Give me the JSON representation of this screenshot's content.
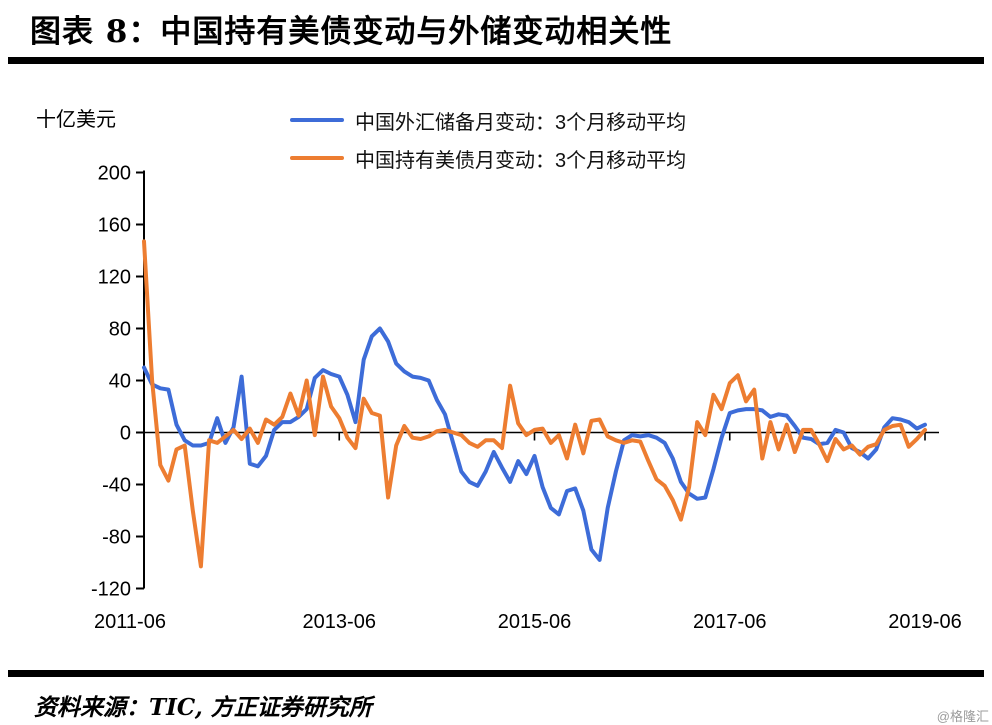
{
  "header": {
    "title": "图表 8：中国持有美债变动与外储变动相关性"
  },
  "footer": {
    "source": "资料来源：TIC, 方正证券研究所",
    "watermark": "@格隆汇"
  },
  "chart_data": {
    "type": "line",
    "title": "图表 8：中国持有美债变动与外储变动相关性",
    "ylabel": "十亿美元",
    "ylim": [
      -120,
      200
    ],
    "y_ticks": [
      200,
      160,
      120,
      80,
      40,
      0,
      -40,
      -80,
      -120
    ],
    "x_tick_labels": [
      "2011-06",
      "2013-06",
      "2015-06",
      "2017-06",
      "2019-06"
    ],
    "x_tick_months": [
      0,
      24,
      48,
      72,
      96
    ],
    "x_start": "2011-06",
    "x_end": "2019-06",
    "x_freq": "monthly",
    "grid": false,
    "legend_position": "top",
    "series": [
      {
        "name": "中国外汇储备月变动：3个月移动平均",
        "color": "#3d6cd8",
        "values": [
          50,
          37,
          34,
          33,
          6,
          -6,
          -10,
          -10,
          -8,
          11,
          -8,
          4,
          43,
          -24,
          -26,
          -18,
          2,
          8,
          8,
          12,
          18,
          42,
          48,
          45,
          43,
          29,
          8,
          56,
          74,
          80,
          70,
          53,
          47,
          43,
          42,
          40,
          25,
          14,
          -8,
          -30,
          -38,
          -41,
          -30,
          -15,
          -27,
          -38,
          -22,
          -32,
          -18,
          -42,
          -58,
          -63,
          -45,
          -43,
          -60,
          -90,
          -98,
          -58,
          -30,
          -6,
          -2,
          -3,
          -2,
          -4,
          -8,
          -20,
          -38,
          -47,
          -51,
          -50,
          -28,
          -4,
          15,
          17,
          18,
          18,
          17,
          12,
          14,
          13,
          5,
          -4,
          -5,
          -9,
          -8,
          2,
          0,
          -12,
          -15,
          -20,
          -13,
          4,
          11,
          10,
          8,
          3,
          6
        ]
      },
      {
        "name": "中国持有美债月变动：3个月移动平均",
        "color": "#ed7d31",
        "values": [
          147,
          40,
          -25,
          -37,
          -13,
          -10,
          -60,
          -103,
          -6,
          -8,
          -3,
          2,
          -5,
          3,
          -8,
          10,
          6,
          12,
          30,
          13,
          40,
          -2,
          43,
          20,
          11,
          -4,
          -12,
          26,
          15,
          13,
          -50,
          -10,
          5,
          -4,
          -5,
          -3,
          1,
          2,
          0,
          -2,
          -8,
          -11,
          -6,
          -6,
          -12,
          36,
          7,
          -2,
          2,
          3,
          -8,
          -2,
          -20,
          6,
          -16,
          9,
          10,
          -3,
          -6,
          -8,
          -6,
          -7,
          -22,
          -36,
          -41,
          -52,
          -67,
          -42,
          8,
          -2,
          29,
          18,
          38,
          44,
          24,
          33,
          -20,
          8,
          -13,
          6,
          -15,
          2,
          2,
          -9,
          -22,
          -5,
          -13,
          -10,
          -17,
          -11,
          -9,
          2,
          5,
          6,
          -11,
          -5,
          2
        ]
      }
    ]
  }
}
